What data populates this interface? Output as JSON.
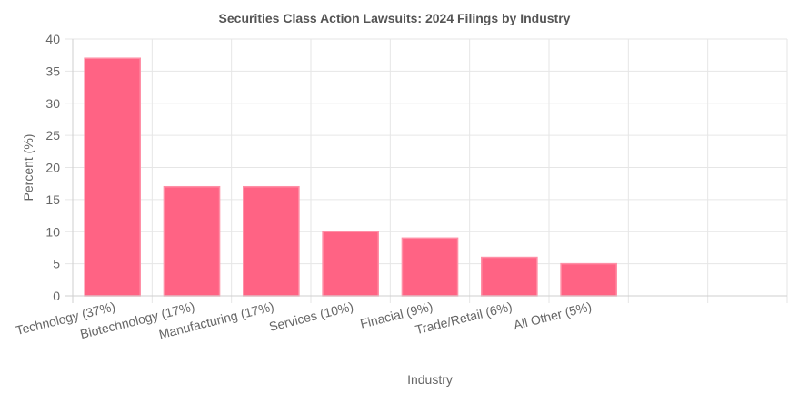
{
  "chart_data": {
    "type": "bar",
    "title": "Securities Class Action Lawsuits: 2024 Filings by Industry",
    "xlabel": "Industry",
    "ylabel": "Percent (%)",
    "categories": [
      "Technology (37%)",
      "Biotechnology (17%)",
      "Manufacturing (17%)",
      "Services (10%)",
      "Finacial  (9%)",
      "Trade/Retail  (6%)",
      "All Other (5%)",
      "",
      ""
    ],
    "values": [
      37,
      17,
      17,
      10,
      9,
      6,
      5,
      null,
      null
    ],
    "ylim": [
      0,
      40
    ],
    "yticks": [
      0,
      5,
      10,
      15,
      20,
      25,
      30,
      35,
      40
    ],
    "grid": true,
    "legend": "none",
    "colors": {
      "bar_fill": "#ff6384",
      "bar_border": "#ff8fa6"
    }
  }
}
